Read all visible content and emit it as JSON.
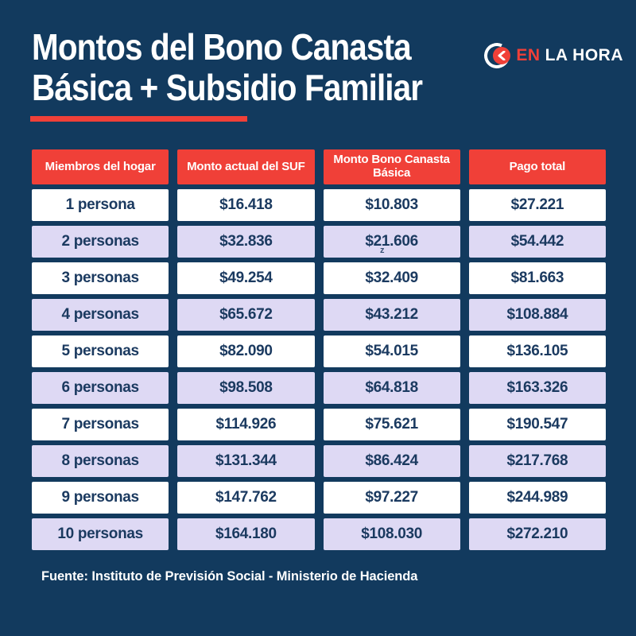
{
  "colors": {
    "navy": "#123A5E",
    "red": "#F04038",
    "lavender": "#DED9F4",
    "white": "#FFFFFF",
    "celltext": "#1B3A60"
  },
  "header": {
    "title_line1": "Montos del Bono Canasta",
    "title_line2": "Básica + Subsidio Familiar"
  },
  "logo": {
    "icon": "enlahora-clock-icon",
    "en": "EN",
    "lahora": "LA HORA"
  },
  "chart_data": {
    "type": "table",
    "title": "Montos del Bono Canasta Básica + Subsidio Familiar",
    "columns": [
      "Miembros del hogar",
      "Monto actual del SUF",
      "Monto Bono Canasta Básica",
      "Pago total"
    ],
    "rows": [
      [
        "1 persona",
        "$16.418",
        "$10.803",
        "$27.221"
      ],
      [
        "2 personas",
        "$32.836",
        "$21.606",
        "$54.442"
      ],
      [
        "3 personas",
        "$49.254",
        "$32.409",
        "$81.663"
      ],
      [
        "4 personas",
        "$65.672",
        "$43.212",
        "$108.884"
      ],
      [
        "5 personas",
        "$82.090",
        "$54.015",
        "$136.105"
      ],
      [
        "6 personas",
        "$98.508",
        "$64.818",
        "$163.326"
      ],
      [
        "7 personas",
        "$114.926",
        "$75.621",
        "$190.547"
      ],
      [
        "8 personas",
        "$131.344",
        "$86.424",
        "$217.768"
      ],
      [
        "9 personas",
        "$147.762",
        "$97.227",
        "$244.989"
      ],
      [
        "10 personas",
        "$164.180",
        "$108.030",
        "$272.210"
      ]
    ]
  },
  "artifact": {
    "stray_mark": "z"
  },
  "footer": {
    "source": "Fuente: Instituto de Previsión Social - Ministerio de Hacienda"
  }
}
